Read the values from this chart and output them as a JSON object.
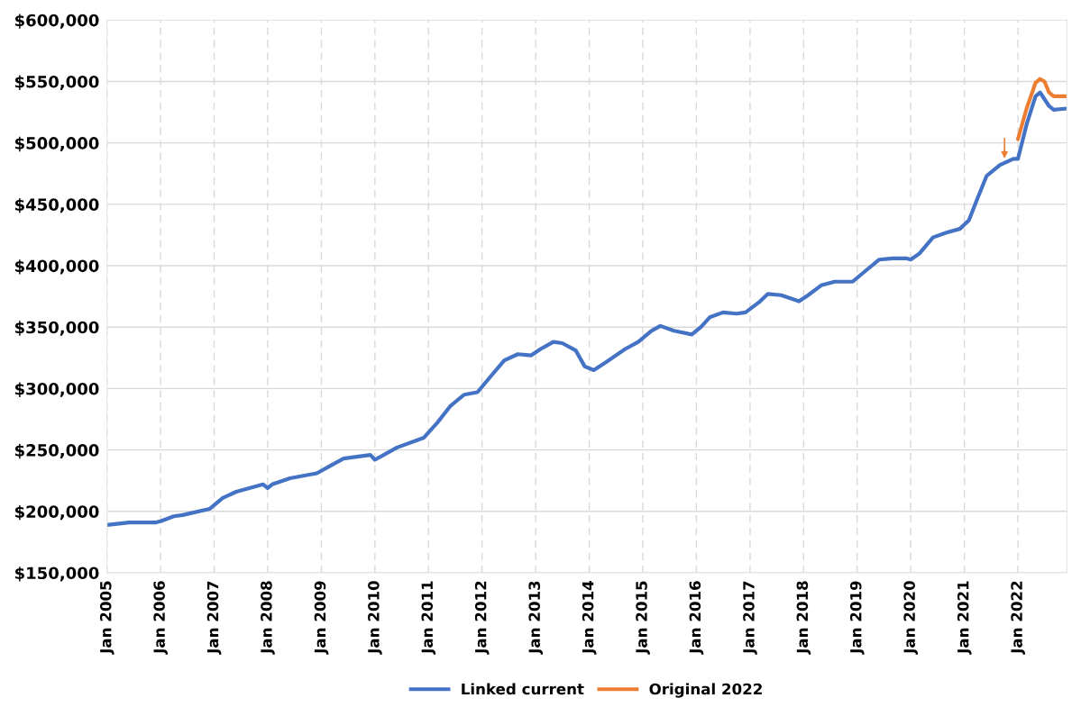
{
  "chart_data": {
    "type": "line",
    "series": [
      {
        "name": "Linked current",
        "color": "#4472c4",
        "x": [
          "2005-01",
          "2005-06",
          "2005-12",
          "2006-01",
          "2006-04",
          "2006-06",
          "2006-12",
          "2007-03",
          "2007-06",
          "2007-12",
          "2008-01",
          "2008-02",
          "2008-06",
          "2008-12",
          "2009-03",
          "2009-06",
          "2009-12",
          "2010-01",
          "2010-06",
          "2010-12",
          "2011-03",
          "2011-06",
          "2011-09",
          "2011-12",
          "2012-03",
          "2012-06",
          "2012-09",
          "2012-12",
          "2013-02",
          "2013-05",
          "2013-07",
          "2013-10",
          "2013-12",
          "2014-02",
          "2014-05",
          "2014-09",
          "2014-12",
          "2015-03",
          "2015-05",
          "2015-08",
          "2015-12",
          "2016-02",
          "2016-04",
          "2016-07",
          "2016-10",
          "2016-12",
          "2017-03",
          "2017-05",
          "2017-08",
          "2017-12",
          "2018-02",
          "2018-05",
          "2018-08",
          "2018-12",
          "2019-03",
          "2019-06",
          "2019-09",
          "2019-12",
          "2020-01",
          "2020-03",
          "2020-06",
          "2020-09",
          "2020-12",
          "2021-02",
          "2021-04",
          "2021-06",
          "2021-09",
          "2021-12",
          "2022-01",
          "2022-03",
          "2022-05",
          "2022-06",
          "2022-08",
          "2022-09",
          "2022-12"
        ],
        "values": [
          189000,
          191000,
          191000,
          192000,
          196000,
          197000,
          202000,
          211000,
          216000,
          222000,
          219000,
          222000,
          227000,
          231000,
          237000,
          243000,
          246000,
          242000,
          252000,
          260000,
          272000,
          286000,
          295000,
          297000,
          310000,
          323000,
          328000,
          327000,
          332000,
          338000,
          337000,
          331000,
          318000,
          315000,
          322000,
          332000,
          338000,
          347000,
          351000,
          347000,
          344000,
          350000,
          358000,
          362000,
          361000,
          362000,
          370000,
          377000,
          376000,
          371000,
          376000,
          384000,
          387000,
          387000,
          396000,
          405000,
          406000,
          406000,
          405000,
          410000,
          423000,
          427000,
          430000,
          437000,
          455000,
          473000,
          482000,
          487000,
          487000,
          515000,
          538000,
          541000,
          530000,
          527000,
          528000
        ]
      },
      {
        "name": "Original 2022",
        "color": "#ed7d31",
        "x": [
          "2022-01",
          "2022-03",
          "2022-05",
          "2022-06",
          "2022-07",
          "2022-08",
          "2022-09",
          "2022-12"
        ],
        "values": [
          503000,
          528000,
          549000,
          552000,
          550000,
          541000,
          538000,
          538000
        ]
      }
    ],
    "xlim": [
      "2005-01",
      "2022-12"
    ],
    "xticks": [
      {
        "value": "2005-01",
        "label": "Jan 2005"
      },
      {
        "value": "2006-01",
        "label": "Jan 2006"
      },
      {
        "value": "2007-01",
        "label": "Jan 2007"
      },
      {
        "value": "2008-01",
        "label": "Jan 2008"
      },
      {
        "value": "2009-01",
        "label": "Jan 2009"
      },
      {
        "value": "2010-01",
        "label": "Jan 2010"
      },
      {
        "value": "2011-01",
        "label": "Jan 2011"
      },
      {
        "value": "2012-01",
        "label": "Jan 2012"
      },
      {
        "value": "2013-01",
        "label": "Jan 2013"
      },
      {
        "value": "2014-01",
        "label": "Jan 2014"
      },
      {
        "value": "2015-01",
        "label": "Jan 2015"
      },
      {
        "value": "2016-01",
        "label": "Jan 2016"
      },
      {
        "value": "2017-01",
        "label": "Jan 2017"
      },
      {
        "value": "2018-01",
        "label": "Jan 2018"
      },
      {
        "value": "2019-01",
        "label": "Jan 2019"
      },
      {
        "value": "2020-01",
        "label": "Jan 2020"
      },
      {
        "value": "2021-01",
        "label": "Jan 2021"
      },
      {
        "value": "2022-01",
        "label": "Jan 2022"
      }
    ],
    "ylim": [
      150000,
      600000
    ],
    "yticks": [
      {
        "value": 150000,
        "label": "$150,000"
      },
      {
        "value": 200000,
        "label": "$200,000"
      },
      {
        "value": 250000,
        "label": "$250,000"
      },
      {
        "value": 300000,
        "label": "$300,000"
      },
      {
        "value": 350000,
        "label": "$350,000"
      },
      {
        "value": 400000,
        "label": "$400,000"
      },
      {
        "value": 450000,
        "label": "$450,000"
      },
      {
        "value": 500000,
        "label": "$500,000"
      },
      {
        "value": 550000,
        "label": "$550,000"
      },
      {
        "value": 600000,
        "label": "$600,000"
      }
    ],
    "grid": true,
    "legend": "bottom",
    "line_style": "solid"
  }
}
